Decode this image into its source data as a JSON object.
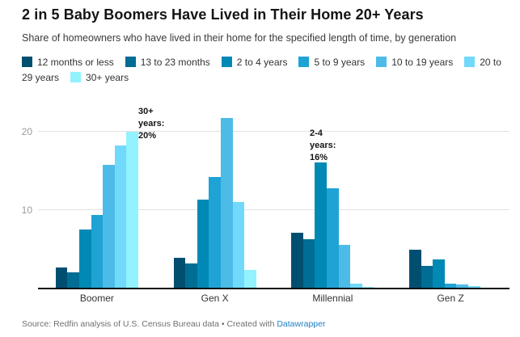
{
  "header": {
    "title": "2 in 5 Baby Boomers Have Lived in Their Home 20+ Years",
    "subtitle": "Share of homeowners who have lived in their home for the specified length of time, by generation"
  },
  "chart_data": {
    "type": "bar",
    "title": "2 in 5 Baby Boomers Have Lived in Their Home 20+ Years",
    "subtitle": "Share of homeowners who have lived in their home for the specified length of time, by generation",
    "categories": [
      "Boomer",
      "Gen X",
      "Millennial",
      "Gen Z"
    ],
    "series": [
      {
        "name": "12 months or less",
        "color": "#014f70",
        "values": [
          2.7,
          3.9,
          7.1,
          4.9
        ]
      },
      {
        "name": "13 to 23 months",
        "color": "#006d94",
        "values": [
          2.1,
          3.2,
          6.3,
          2.9
        ]
      },
      {
        "name": "2 to 4 years",
        "color": "#0089b4",
        "values": [
          7.5,
          11.3,
          16,
          3.7
        ]
      },
      {
        "name": "5 to 9 years",
        "color": "#1fa3d4",
        "values": [
          9.4,
          14.2,
          12.8,
          0.6
        ]
      },
      {
        "name": "10 to 19 years",
        "color": "#4dbbe8",
        "values": [
          15.7,
          21.7,
          5.6,
          0.5
        ]
      },
      {
        "name": "20 to 29 years",
        "color": "#70d9fc",
        "values": [
          18.2,
          11,
          0.6,
          0.3
        ]
      },
      {
        "name": "30+ years",
        "color": "#92f2fe",
        "values": [
          20,
          2.4,
          0.2,
          0
        ]
      }
    ],
    "ylabel": "",
    "xlabel": "",
    "ylim": [
      0,
      23.5
    ],
    "yticks": [
      10,
      20
    ],
    "grid": "horizontal",
    "legend_position": "top",
    "annotations": [
      {
        "text": "30+\nyears:\n20%",
        "x": 171,
        "y": 3
      },
      {
        "text": "2-4\nyears:\n16%",
        "x": 383,
        "y": 30
      }
    ]
  },
  "footer": {
    "text": "Source: Redfin analysis of U.S. Census Bureau data • Created with ",
    "link_label": "Datawrapper"
  }
}
